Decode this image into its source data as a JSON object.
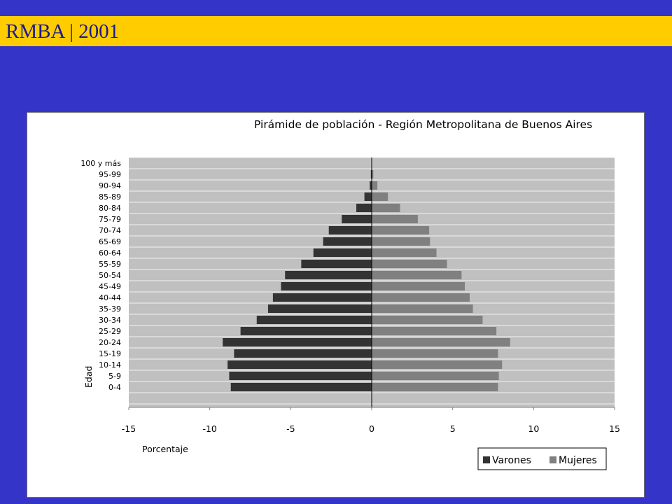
{
  "slide": {
    "title": "RMBA | 2001"
  },
  "chart_data": {
    "type": "bar",
    "orientation": "horizontal",
    "title": "Pirámide de población - Región Metropolitana de Buenos Aires",
    "xlabel": "Porcentaje",
    "ylabel": "Edad",
    "xlim": [
      -15,
      15
    ],
    "xticks": [
      "-15",
      "-10",
      "-5",
      "0",
      "5",
      "10",
      "15"
    ],
    "grid": true,
    "legend_position": "bottom-right",
    "categories": [
      "100 y más",
      "95-99",
      "90-94",
      "85-89",
      "80-84",
      "75-79",
      "70-74",
      "65-69",
      "60-64",
      "55-59",
      "50-54",
      "45-49",
      "40-44",
      "35-39",
      "30-34",
      "25-29",
      "20-24",
      "15-19",
      "10-14",
      "5-9",
      "0-4"
    ],
    "series": [
      {
        "name": "Varones",
        "color": "#333333",
        "values": [
          0,
          -0.05,
          -0.12,
          -0.45,
          -0.95,
          -1.85,
          -2.65,
          -3.0,
          -3.6,
          -4.35,
          -5.35,
          -5.6,
          -6.1,
          -6.4,
          -7.1,
          -8.1,
          -9.2,
          -8.5,
          -8.9,
          -8.8,
          -8.7
        ]
      },
      {
        "name": "Mujeres",
        "color": "#808080",
        "values": [
          0,
          0.1,
          0.35,
          1.0,
          1.75,
          2.85,
          3.55,
          3.6,
          4.0,
          4.65,
          5.55,
          5.75,
          6.05,
          6.25,
          6.85,
          7.7,
          8.55,
          7.8,
          8.05,
          7.85,
          7.8
        ]
      }
    ]
  }
}
